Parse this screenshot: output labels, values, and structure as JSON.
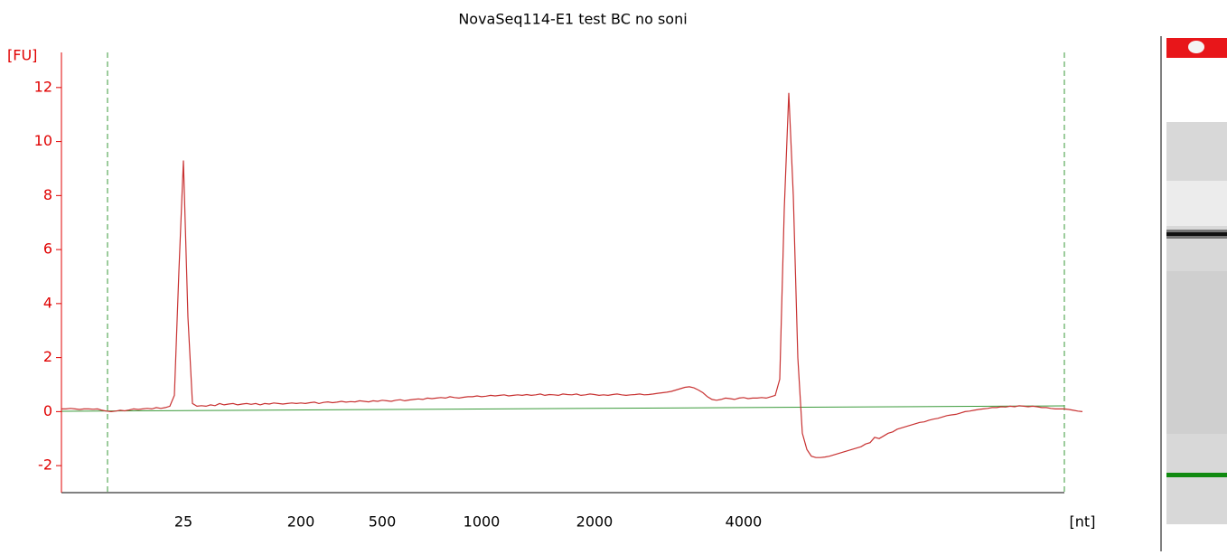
{
  "chart_data": {
    "type": "line",
    "title": "NovaSeq114-E1 test BC no soni",
    "y_label": "[FU]",
    "x_label": "[nt]",
    "categories": [
      null,
      null,
      null,
      null,
      null,
      null,
      null,
      null,
      null,
      null,
      null,
      null,
      null,
      null,
      null,
      null,
      null,
      null,
      null,
      null,
      null,
      null,
      null,
      null,
      null,
      null,
      null,
      "25",
      null,
      null,
      null,
      null,
      null,
      null,
      null,
      null,
      null,
      null,
      null,
      null,
      null,
      null,
      null,
      null,
      null,
      null,
      null,
      null,
      null,
      null,
      null,
      null,
      null,
      "200",
      null,
      null,
      null,
      null,
      null,
      null,
      null,
      null,
      null,
      null,
      null,
      null,
      null,
      null,
      null,
      null,
      null,
      "500",
      null,
      null,
      null,
      null,
      null,
      null,
      null,
      null,
      null,
      null,
      null,
      null,
      null,
      null,
      null,
      null,
      null,
      null,
      null,
      null,
      null,
      "1000",
      null,
      null,
      null,
      null,
      null,
      null,
      null,
      null,
      null,
      null,
      null,
      null,
      null,
      null,
      null,
      null,
      null,
      null,
      null,
      null,
      null,
      null,
      null,
      null,
      "2000",
      null,
      null,
      null,
      null,
      null,
      null,
      null,
      null,
      null,
      null,
      null,
      null,
      null,
      null,
      null,
      null,
      null,
      null,
      null,
      null,
      null,
      null,
      null,
      null,
      null,
      null,
      null,
      null,
      null,
      null,
      null,
      null,
      "4000",
      null,
      null,
      null,
      null,
      null,
      null,
      null,
      null,
      null,
      null,
      null,
      null,
      null,
      null,
      null,
      null,
      null,
      null,
      null,
      null,
      null,
      null,
      null,
      null,
      null,
      null,
      null,
      null,
      null,
      null,
      null,
      null,
      null,
      null,
      null,
      null,
      null,
      null,
      null,
      null,
      null,
      null,
      null,
      null,
      null,
      null,
      null,
      null,
      null,
      null,
      null,
      null,
      null,
      null,
      null,
      null,
      null,
      null,
      null,
      null,
      null,
      null,
      null,
      null,
      null,
      null,
      null,
      null,
      null,
      null,
      null,
      null,
      null,
      null,
      null
    ],
    "series": [
      {
        "color": "#c83232",
        "values": [
          0.1,
          0.1,
          0.12,
          0.1,
          0.08,
          0.1,
          0.1,
          0.09,
          0.1,
          0.05,
          0.02,
          0,
          0.02,
          0.05,
          0.03,
          0.06,
          0.1,
          0.08,
          0.1,
          0.12,
          0.1,
          0.15,
          0.12,
          0.15,
          0.2,
          0.6,
          5.2,
          9.3,
          3.5,
          0.3,
          0.2,
          0.22,
          0.2,
          0.25,
          0.22,
          0.3,
          0.25,
          0.28,
          0.3,
          0.25,
          0.28,
          0.3,
          0.27,
          0.3,
          0.25,
          0.3,
          0.28,
          0.32,
          0.3,
          0.28,
          0.3,
          0.32,
          0.3,
          0.32,
          0.3,
          0.33,
          0.35,
          0.3,
          0.34,
          0.36,
          0.33,
          0.35,
          0.38,
          0.35,
          0.37,
          0.36,
          0.4,
          0.38,
          0.36,
          0.4,
          0.38,
          0.42,
          0.4,
          0.38,
          0.42,
          0.44,
          0.4,
          0.43,
          0.45,
          0.47,
          0.45,
          0.5,
          0.48,
          0.5,
          0.52,
          0.5,
          0.55,
          0.52,
          0.5,
          0.53,
          0.55,
          0.55,
          0.58,
          0.55,
          0.57,
          0.6,
          0.58,
          0.6,
          0.62,
          0.58,
          0.6,
          0.62,
          0.6,
          0.63,
          0.6,
          0.62,
          0.65,
          0.6,
          0.63,
          0.62,
          0.6,
          0.65,
          0.63,
          0.62,
          0.65,
          0.6,
          0.62,
          0.65,
          0.63,
          0.6,
          0.62,
          0.6,
          0.63,
          0.65,
          0.62,
          0.6,
          0.62,
          0.63,
          0.65,
          0.62,
          0.63,
          0.65,
          0.68,
          0.7,
          0.72,
          0.75,
          0.8,
          0.85,
          0.9,
          0.92,
          0.88,
          0.8,
          0.7,
          0.55,
          0.45,
          0.42,
          0.45,
          0.5,
          0.48,
          0.45,
          0.5,
          0.52,
          0.48,
          0.5,
          0.5,
          0.52,
          0.5,
          0.55,
          0.6,
          1.2,
          7.5,
          11.8,
          8,
          2,
          -0.8,
          -1.4,
          -1.65,
          -1.7,
          -1.7,
          -1.68,
          -1.65,
          -1.6,
          -1.55,
          -1.5,
          -1.45,
          -1.4,
          -1.35,
          -1.3,
          -1.2,
          -1.15,
          -0.95,
          -1.0,
          -0.9,
          -0.8,
          -0.75,
          -0.65,
          -0.6,
          -0.55,
          -0.5,
          -0.45,
          -0.4,
          -0.38,
          -0.32,
          -0.28,
          -0.25,
          -0.2,
          -0.15,
          -0.12,
          -0.1,
          -0.05,
          0,
          0.02,
          0.05,
          0.08,
          0.1,
          0.12,
          0.15,
          0.15,
          0.18,
          0.17,
          0.2,
          0.18,
          0.22,
          0.2,
          0.18,
          0.2,
          0.18,
          0.15,
          0.15,
          0.12,
          0.1,
          0.1,
          0.1,
          0.08,
          0.05,
          0.02,
          0
        ]
      }
    ],
    "ylim": [
      -3,
      13.3
    ],
    "yticks": [
      -2,
      0,
      2,
      4,
      6,
      8,
      10,
      12
    ],
    "axis_color": "#e00000"
  }
}
